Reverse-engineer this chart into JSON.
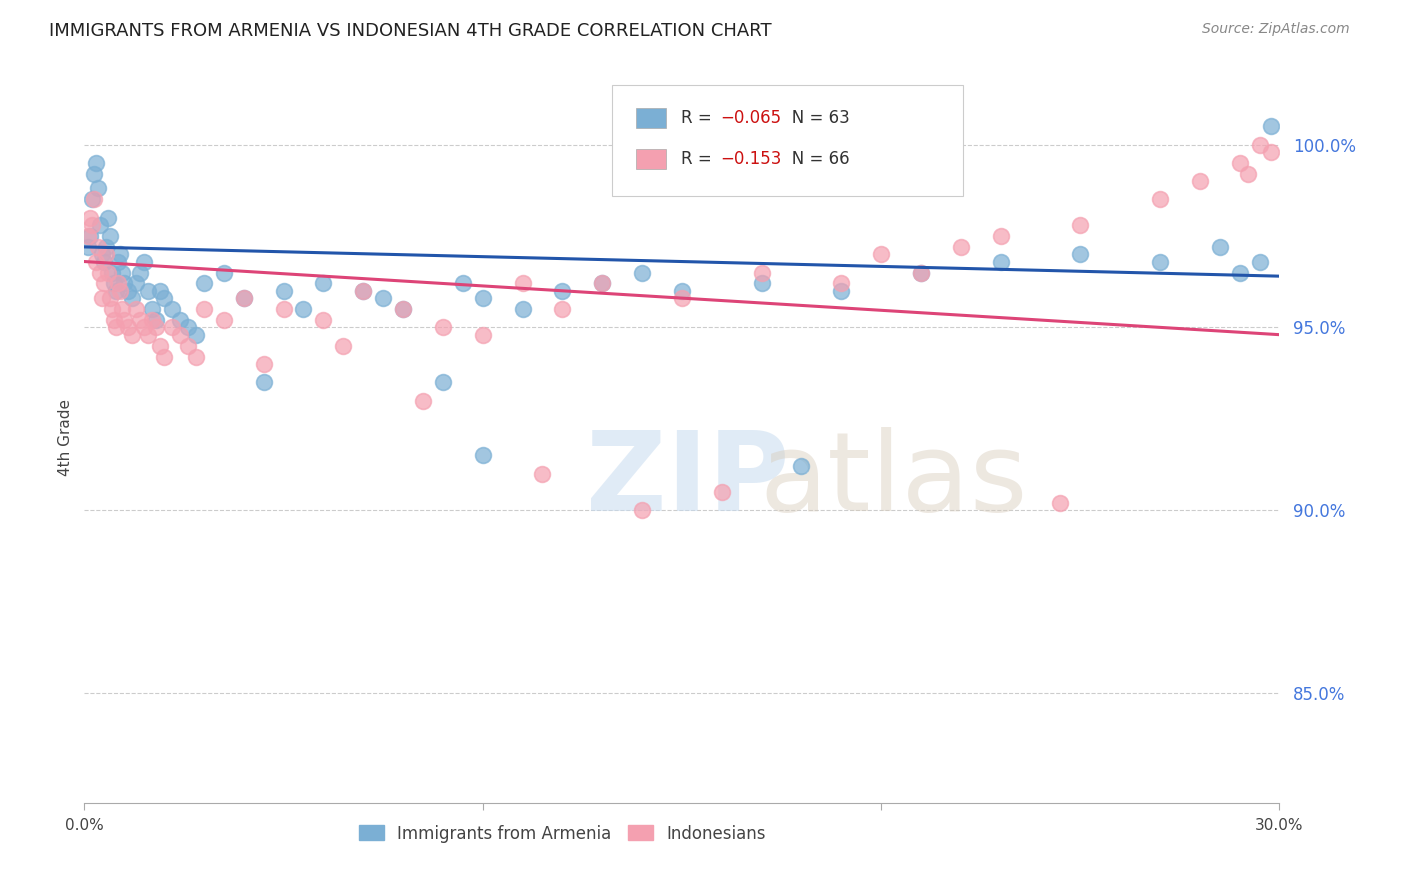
{
  "title": "IMMIGRANTS FROM ARMENIA VS INDONESIAN 4TH GRADE CORRELATION CHART",
  "source": "Source: ZipAtlas.com",
  "ylabel": "4th Grade",
  "xlim": [
    0.0,
    30.0
  ],
  "ylim": [
    82.0,
    102.0
  ],
  "yticks": [
    85.0,
    90.0,
    95.0,
    100.0
  ],
  "blue_color": "#7BAFD4",
  "pink_color": "#F4A0B0",
  "blue_line_color": "#2255AA",
  "pink_line_color": "#DD4477",
  "background": "#FFFFFF",
  "blue_scatter_x": [
    0.1,
    0.15,
    0.2,
    0.25,
    0.3,
    0.35,
    0.4,
    0.45,
    0.5,
    0.55,
    0.6,
    0.65,
    0.7,
    0.75,
    0.8,
    0.85,
    0.9,
    0.95,
    1.0,
    1.1,
    1.2,
    1.3,
    1.4,
    1.5,
    1.6,
    1.7,
    1.8,
    1.9,
    2.0,
    2.2,
    2.4,
    2.6,
    2.8,
    3.0,
    3.5,
    4.0,
    4.5,
    5.0,
    5.5,
    6.0,
    7.0,
    8.0,
    9.0,
    10.0,
    11.0,
    12.0,
    13.0,
    14.0,
    15.0,
    17.0,
    19.0,
    21.0,
    23.0,
    25.0,
    27.0,
    28.5,
    29.0,
    29.5,
    10.0,
    18.0,
    7.5,
    9.5,
    29.8
  ],
  "blue_scatter_y": [
    97.2,
    97.5,
    98.5,
    99.2,
    99.5,
    98.8,
    97.8,
    97.0,
    96.8,
    97.2,
    98.0,
    97.5,
    96.5,
    96.2,
    96.0,
    96.8,
    97.0,
    96.5,
    96.2,
    96.0,
    95.8,
    96.2,
    96.5,
    96.8,
    96.0,
    95.5,
    95.2,
    96.0,
    95.8,
    95.5,
    95.2,
    95.0,
    94.8,
    96.2,
    96.5,
    95.8,
    93.5,
    96.0,
    95.5,
    96.2,
    96.0,
    95.5,
    93.5,
    95.8,
    95.5,
    96.0,
    96.2,
    96.5,
    96.0,
    96.2,
    96.0,
    96.5,
    96.8,
    97.0,
    96.8,
    97.2,
    96.5,
    96.8,
    91.5,
    91.2,
    95.8,
    96.2,
    100.5
  ],
  "pink_scatter_x": [
    0.1,
    0.15,
    0.2,
    0.25,
    0.3,
    0.35,
    0.4,
    0.45,
    0.5,
    0.55,
    0.6,
    0.65,
    0.7,
    0.75,
    0.8,
    0.85,
    0.9,
    0.95,
    1.0,
    1.1,
    1.2,
    1.3,
    1.4,
    1.5,
    1.6,
    1.7,
    1.8,
    1.9,
    2.0,
    2.2,
    2.4,
    2.6,
    2.8,
    3.0,
    3.5,
    4.0,
    4.5,
    5.0,
    6.0,
    7.0,
    8.0,
    9.0,
    10.0,
    11.0,
    12.0,
    13.0,
    15.0,
    17.0,
    19.0,
    20.0,
    21.0,
    22.0,
    23.0,
    25.0,
    27.0,
    28.0,
    29.0,
    29.2,
    29.5,
    6.5,
    8.5,
    11.5,
    14.0,
    16.0,
    24.5,
    29.8
  ],
  "pink_scatter_y": [
    97.5,
    98.0,
    97.8,
    98.5,
    96.8,
    97.2,
    96.5,
    95.8,
    96.2,
    97.0,
    96.5,
    95.8,
    95.5,
    95.2,
    95.0,
    96.2,
    96.0,
    95.5,
    95.2,
    95.0,
    94.8,
    95.5,
    95.2,
    95.0,
    94.8,
    95.2,
    95.0,
    94.5,
    94.2,
    95.0,
    94.8,
    94.5,
    94.2,
    95.5,
    95.2,
    95.8,
    94.0,
    95.5,
    95.2,
    96.0,
    95.5,
    95.0,
    94.8,
    96.2,
    95.5,
    96.2,
    95.8,
    96.5,
    96.2,
    97.0,
    96.5,
    97.2,
    97.5,
    97.8,
    98.5,
    99.0,
    99.5,
    99.2,
    100.0,
    94.5,
    93.0,
    91.0,
    90.0,
    90.5,
    90.2,
    99.8
  ],
  "blue_regline_x": [
    0.0,
    30.0
  ],
  "blue_regline_y": [
    97.2,
    96.4
  ],
  "pink_regline_x": [
    0.0,
    30.0
  ],
  "pink_regline_y": [
    96.8,
    94.8
  ]
}
